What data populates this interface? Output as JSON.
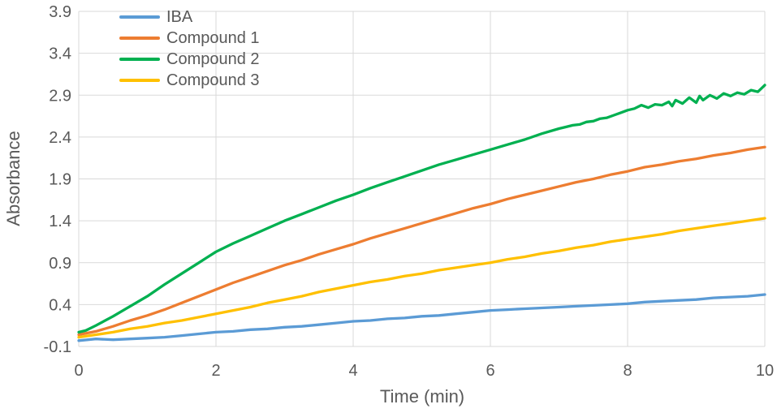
{
  "chart_data": {
    "type": "line",
    "title": "",
    "xlabel": "Time (min)",
    "ylabel": "Absorbance",
    "xlim": [
      0,
      10
    ],
    "ylim": [
      -0.1,
      3.9
    ],
    "xticks": [
      0,
      2,
      4,
      6,
      8,
      10
    ],
    "yticks": [
      -0.1,
      0.4,
      0.9,
      1.4,
      1.9,
      2.4,
      2.9,
      3.4,
      3.9
    ],
    "grid": true,
    "legend_position": "top-left-inside",
    "gridline_color": "#d9d9d9",
    "axis_text_color": "#595959",
    "series": [
      {
        "name": "IBA",
        "color": "#5b9bd5",
        "x": [
          0,
          0.25,
          0.5,
          0.75,
          1,
          1.25,
          1.5,
          1.75,
          2,
          2.25,
          2.5,
          2.75,
          3,
          3.25,
          3.5,
          3.75,
          4,
          4.25,
          4.5,
          4.75,
          5,
          5.25,
          5.5,
          5.75,
          6,
          6.25,
          6.5,
          6.75,
          7,
          7.25,
          7.5,
          7.75,
          8,
          8.25,
          8.5,
          8.75,
          9,
          9.25,
          9.5,
          9.75,
          10
        ],
        "y": [
          -0.03,
          -0.01,
          -0.02,
          -0.01,
          0.0,
          0.01,
          0.03,
          0.05,
          0.07,
          0.08,
          0.1,
          0.11,
          0.13,
          0.14,
          0.16,
          0.18,
          0.2,
          0.21,
          0.23,
          0.24,
          0.26,
          0.27,
          0.29,
          0.31,
          0.33,
          0.34,
          0.35,
          0.36,
          0.37,
          0.38,
          0.39,
          0.4,
          0.41,
          0.43,
          0.44,
          0.45,
          0.46,
          0.48,
          0.49,
          0.5,
          0.52
        ]
      },
      {
        "name": "Compound 1",
        "color": "#ed7d31",
        "x": [
          0,
          0.25,
          0.5,
          0.75,
          1,
          1.25,
          1.5,
          1.75,
          2,
          2.25,
          2.5,
          2.75,
          3,
          3.25,
          3.5,
          3.75,
          4,
          4.25,
          4.5,
          4.75,
          5,
          5.25,
          5.5,
          5.75,
          6,
          6.25,
          6.5,
          6.75,
          7,
          7.25,
          7.5,
          7.75,
          8,
          8.25,
          8.5,
          8.75,
          9,
          9.25,
          9.5,
          9.75,
          10
        ],
        "y": [
          0.04,
          0.08,
          0.14,
          0.21,
          0.27,
          0.34,
          0.42,
          0.5,
          0.58,
          0.66,
          0.73,
          0.8,
          0.87,
          0.93,
          1.0,
          1.06,
          1.12,
          1.19,
          1.25,
          1.31,
          1.37,
          1.43,
          1.49,
          1.55,
          1.6,
          1.66,
          1.71,
          1.76,
          1.81,
          1.86,
          1.9,
          1.95,
          1.99,
          2.04,
          2.07,
          2.11,
          2.14,
          2.18,
          2.21,
          2.25,
          2.28
        ]
      },
      {
        "name": "Compound 2",
        "color": "#00b050",
        "x": [
          0,
          0.1,
          0.25,
          0.5,
          0.75,
          1,
          1.25,
          1.5,
          1.75,
          2,
          2.25,
          2.5,
          2.75,
          3,
          3.25,
          3.5,
          3.75,
          4,
          4.25,
          4.5,
          4.75,
          5,
          5.25,
          5.5,
          5.75,
          6,
          6.25,
          6.5,
          6.75,
          7,
          7.1,
          7.2,
          7.3,
          7.4,
          7.5,
          7.6,
          7.7,
          7.8,
          7.9,
          8,
          8.1,
          8.2,
          8.3,
          8.4,
          8.5,
          8.6,
          8.65,
          8.7,
          8.8,
          8.9,
          9,
          9.05,
          9.1,
          9.2,
          9.3,
          9.4,
          9.5,
          9.6,
          9.7,
          9.8,
          9.9,
          10
        ],
        "y": [
          0.07,
          0.09,
          0.15,
          0.26,
          0.38,
          0.5,
          0.64,
          0.77,
          0.9,
          1.03,
          1.13,
          1.22,
          1.31,
          1.4,
          1.48,
          1.56,
          1.64,
          1.71,
          1.79,
          1.86,
          1.93,
          2.0,
          2.07,
          2.13,
          2.19,
          2.25,
          2.31,
          2.37,
          2.44,
          2.5,
          2.52,
          2.54,
          2.55,
          2.58,
          2.59,
          2.62,
          2.63,
          2.66,
          2.69,
          2.72,
          2.74,
          2.78,
          2.75,
          2.79,
          2.78,
          2.82,
          2.77,
          2.84,
          2.8,
          2.87,
          2.81,
          2.89,
          2.84,
          2.9,
          2.86,
          2.92,
          2.89,
          2.93,
          2.91,
          2.96,
          2.94,
          3.02
        ]
      },
      {
        "name": "Compound 3",
        "color": "#ffc000",
        "x": [
          0,
          0.25,
          0.5,
          0.75,
          1,
          1.25,
          1.5,
          1.75,
          2,
          2.25,
          2.5,
          2.75,
          3,
          3.25,
          3.5,
          3.75,
          4,
          4.25,
          4.5,
          4.75,
          5,
          5.25,
          5.5,
          5.75,
          6,
          6.25,
          6.5,
          6.75,
          7,
          7.25,
          7.5,
          7.75,
          8,
          8.25,
          8.5,
          8.75,
          9,
          9.25,
          9.5,
          9.75,
          10
        ],
        "y": [
          0.01,
          0.04,
          0.07,
          0.11,
          0.14,
          0.18,
          0.21,
          0.25,
          0.29,
          0.33,
          0.37,
          0.42,
          0.46,
          0.5,
          0.55,
          0.59,
          0.63,
          0.67,
          0.7,
          0.74,
          0.77,
          0.81,
          0.84,
          0.87,
          0.9,
          0.94,
          0.97,
          1.01,
          1.04,
          1.08,
          1.11,
          1.15,
          1.18,
          1.21,
          1.24,
          1.28,
          1.31,
          1.34,
          1.37,
          1.4,
          1.43
        ]
      }
    ]
  }
}
